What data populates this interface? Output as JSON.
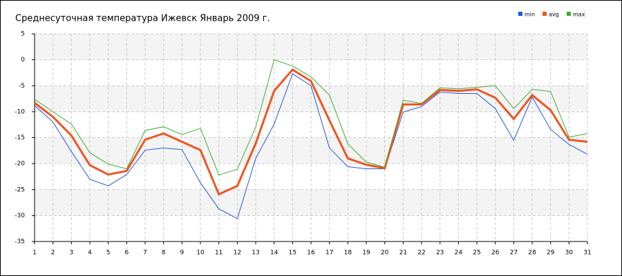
{
  "chart_data": {
    "type": "line",
    "title": "Среднесуточная температура Ижевск  Январь 2009 г.",
    "x": [
      1,
      2,
      3,
      4,
      5,
      6,
      7,
      8,
      9,
      10,
      11,
      12,
      13,
      14,
      15,
      16,
      17,
      18,
      19,
      20,
      21,
      22,
      23,
      24,
      25,
      26,
      27,
      28,
      29,
      30,
      31
    ],
    "xlim": [
      1,
      31
    ],
    "xticks": [
      1,
      2,
      3,
      4,
      5,
      6,
      7,
      8,
      9,
      10,
      11,
      12,
      13,
      14,
      15,
      16,
      17,
      18,
      19,
      20,
      21,
      22,
      23,
      24,
      25,
      26,
      27,
      28,
      29,
      30,
      31
    ],
    "ylim": [
      -35,
      5
    ],
    "yticks": [
      -35,
      -30,
      -25,
      -20,
      -15,
      -10,
      -5,
      0,
      5
    ],
    "grid": true,
    "legend": "top-right",
    "series": [
      {
        "name": "min",
        "color": "#2255dd",
        "values": [
          -8.8,
          -12,
          -17.7,
          -23,
          -24.3,
          -22.1,
          -17.4,
          -17,
          -17.3,
          -23.7,
          -28.7,
          -30.6,
          -19,
          -12.4,
          -2.7,
          -5,
          -17,
          -20.6,
          -21,
          -21,
          -10.1,
          -9,
          -6.2,
          -6.5,
          -6.5,
          -9.4,
          -15.5,
          -7.2,
          -13.4,
          -16.3,
          -18.2
        ]
      },
      {
        "name": "avg",
        "color": "#ee5522",
        "values": [
          -8.3,
          -11,
          -14.6,
          -20.3,
          -22.1,
          -21.4,
          -15.4,
          -14.2,
          -15.8,
          -17.4,
          -25.9,
          -24.3,
          -16.1,
          -6,
          -1.9,
          -4.1,
          -11.7,
          -19,
          -20.2,
          -20.9,
          -8.6,
          -8.6,
          -5.8,
          -6,
          -5.7,
          -7.3,
          -11.4,
          -6.8,
          -9.7,
          -15.4,
          -15.8
        ]
      },
      {
        "name": "max",
        "color": "#44aa33",
        "values": [
          -7.6,
          -10,
          -12.4,
          -17.9,
          -20.1,
          -21,
          -13.6,
          -12.9,
          -14.4,
          -13.2,
          -22.2,
          -21.1,
          -13,
          0,
          -1.2,
          -3.3,
          -6.8,
          -16.2,
          -19.7,
          -20.7,
          -7.8,
          -8.4,
          -5.4,
          -5.6,
          -5.3,
          -5,
          -9.4,
          -5.7,
          -6.1,
          -14.9,
          -14.2
        ]
      }
    ]
  }
}
